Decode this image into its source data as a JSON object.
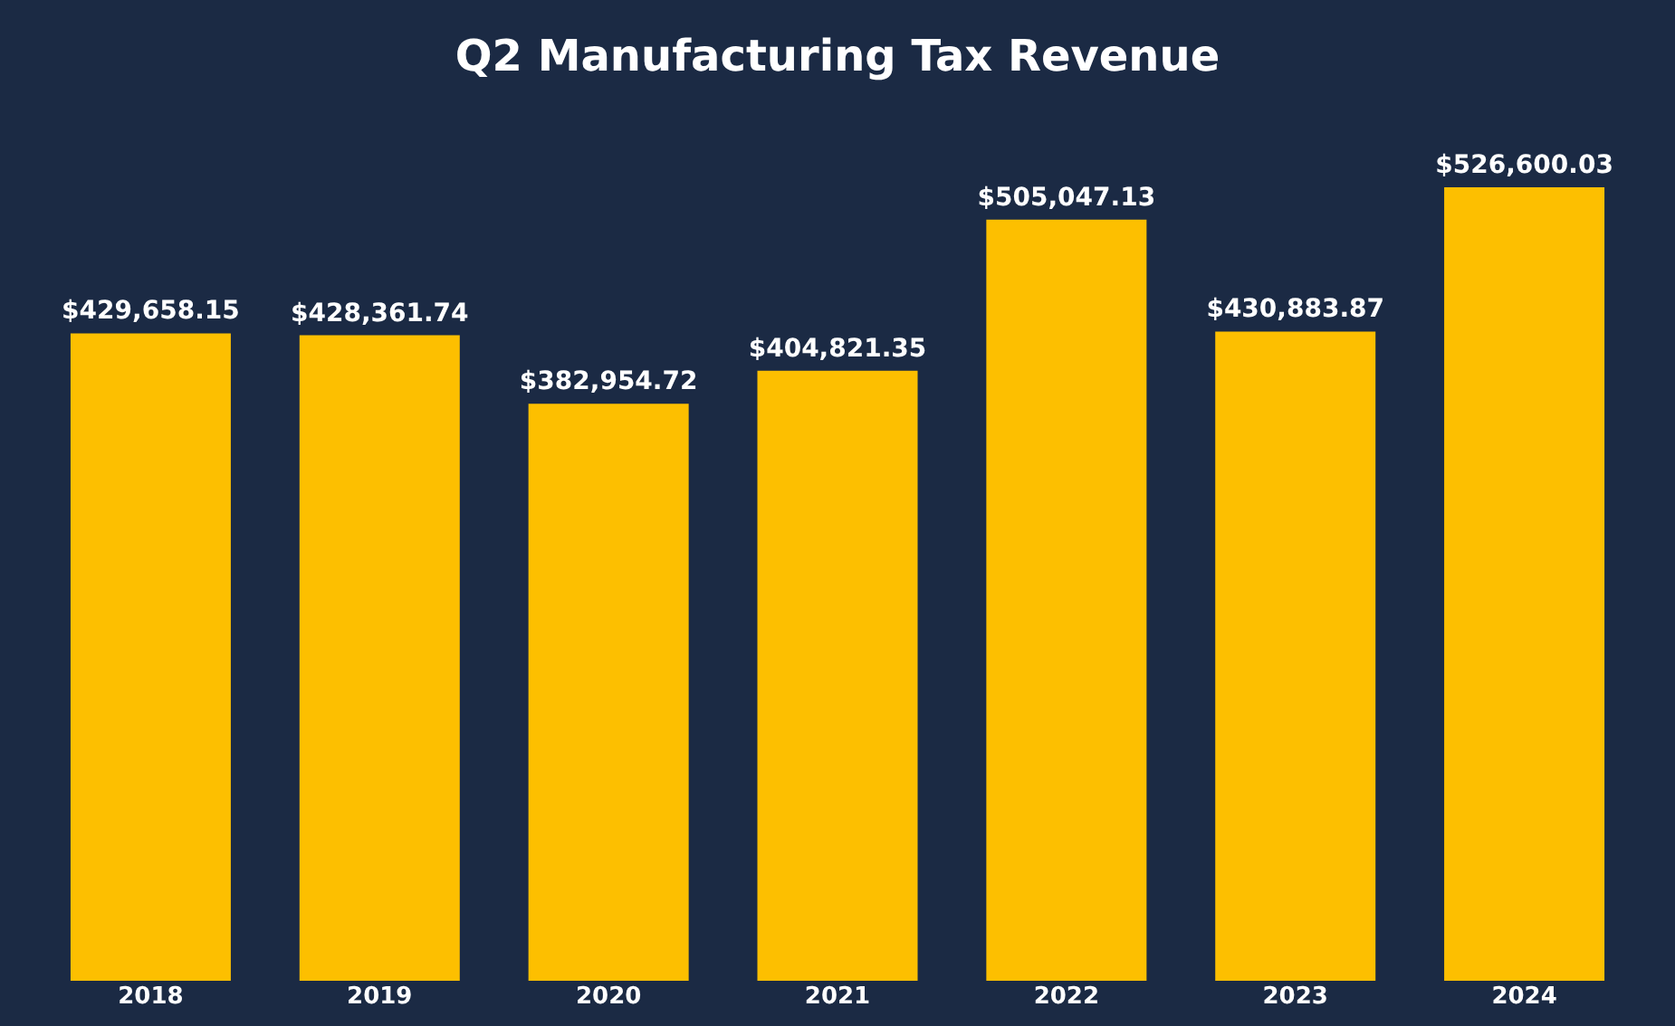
{
  "chart_data": {
    "type": "bar",
    "title": "Q2 Manufacturing Tax Revenue",
    "categories": [
      "2018",
      "2019",
      "2020",
      "2021",
      "2022",
      "2023",
      "2024"
    ],
    "values": [
      429658.15,
      428361.74,
      382954.72,
      404821.35,
      505047.13,
      430883.87,
      526600.03
    ],
    "value_labels": [
      "$429,658.15",
      "$428,361.74",
      "$382,954.72",
      "$404,821.35",
      "$505,047.13",
      "$430,883.87",
      "$526,600.03"
    ],
    "color": "#fdbf00",
    "grid": false,
    "tick_labels": "x"
  }
}
